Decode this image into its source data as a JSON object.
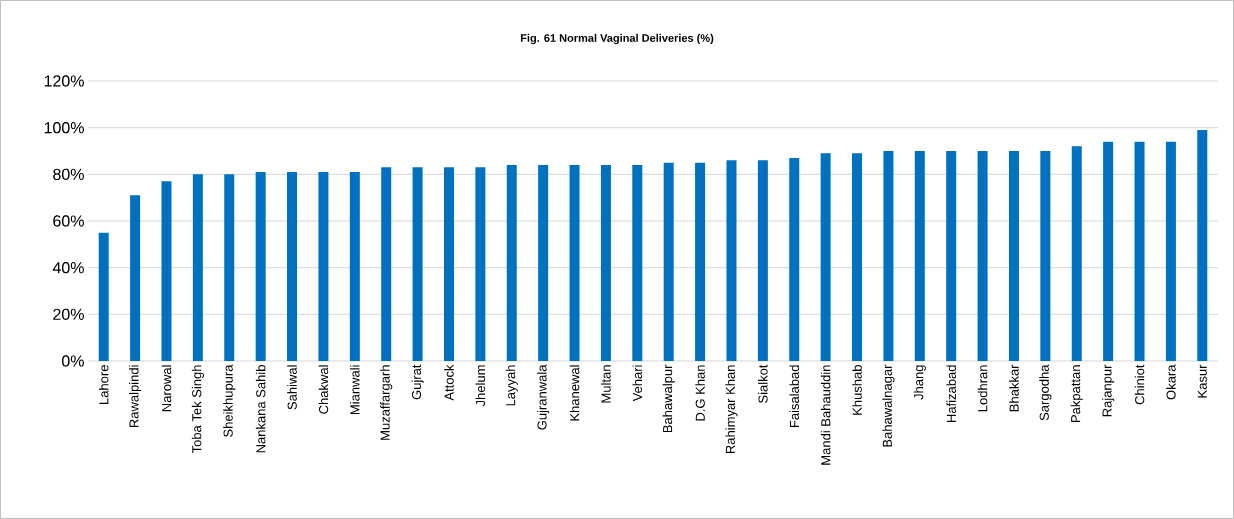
{
  "chart_data": {
    "type": "bar",
    "title": "Fig. 61 Normal Vaginal Deliveries (%)",
    "categories": [
      "Lahore",
      "Rawalpindi",
      "Narowal",
      "Toba Tek Singh",
      "Sheikhupura",
      "Nankana Sahib",
      "Sahiwal",
      "Chakwal",
      "Mianwali",
      "Muzaffargarh",
      "Gujrat",
      "Attock",
      "Jhelum",
      "Layyah",
      "Gujranwala",
      "Khanewal",
      "Multan",
      "Vehari",
      "Bahawalpur",
      "D.G Khan",
      "Rahimyar Khan",
      "Sialkot",
      "Faisalabad",
      "Mandi Bahauddin",
      "Khushab",
      "Bahawalnagar",
      "Jhang",
      "Hafizabad",
      "Lodhran",
      "Bhakkar",
      "Sargodha",
      "Pakpattan",
      "Rajanpur",
      "Chiniot",
      "Okara",
      "Kasur"
    ],
    "values": [
      55,
      71,
      77,
      80,
      80,
      81,
      81,
      81,
      81,
      83,
      83,
      83,
      83,
      84,
      84,
      84,
      84,
      84,
      85,
      85,
      86,
      86,
      87,
      89,
      89,
      90,
      90,
      90,
      90,
      90,
      90,
      92,
      94,
      94,
      94,
      99
    ],
    "color": "#0070c0",
    "ylim": [
      0,
      120
    ],
    "yticks": [
      {
        "value": 0,
        "label": "0%"
      },
      {
        "value": 20,
        "label": "20%"
      },
      {
        "value": 40,
        "label": "40%"
      },
      {
        "value": 60,
        "label": "60%"
      },
      {
        "value": 80,
        "label": "80%"
      },
      {
        "value": 100,
        "label": "100%"
      },
      {
        "value": 120,
        "label": "120%"
      }
    ],
    "grid": "y"
  }
}
